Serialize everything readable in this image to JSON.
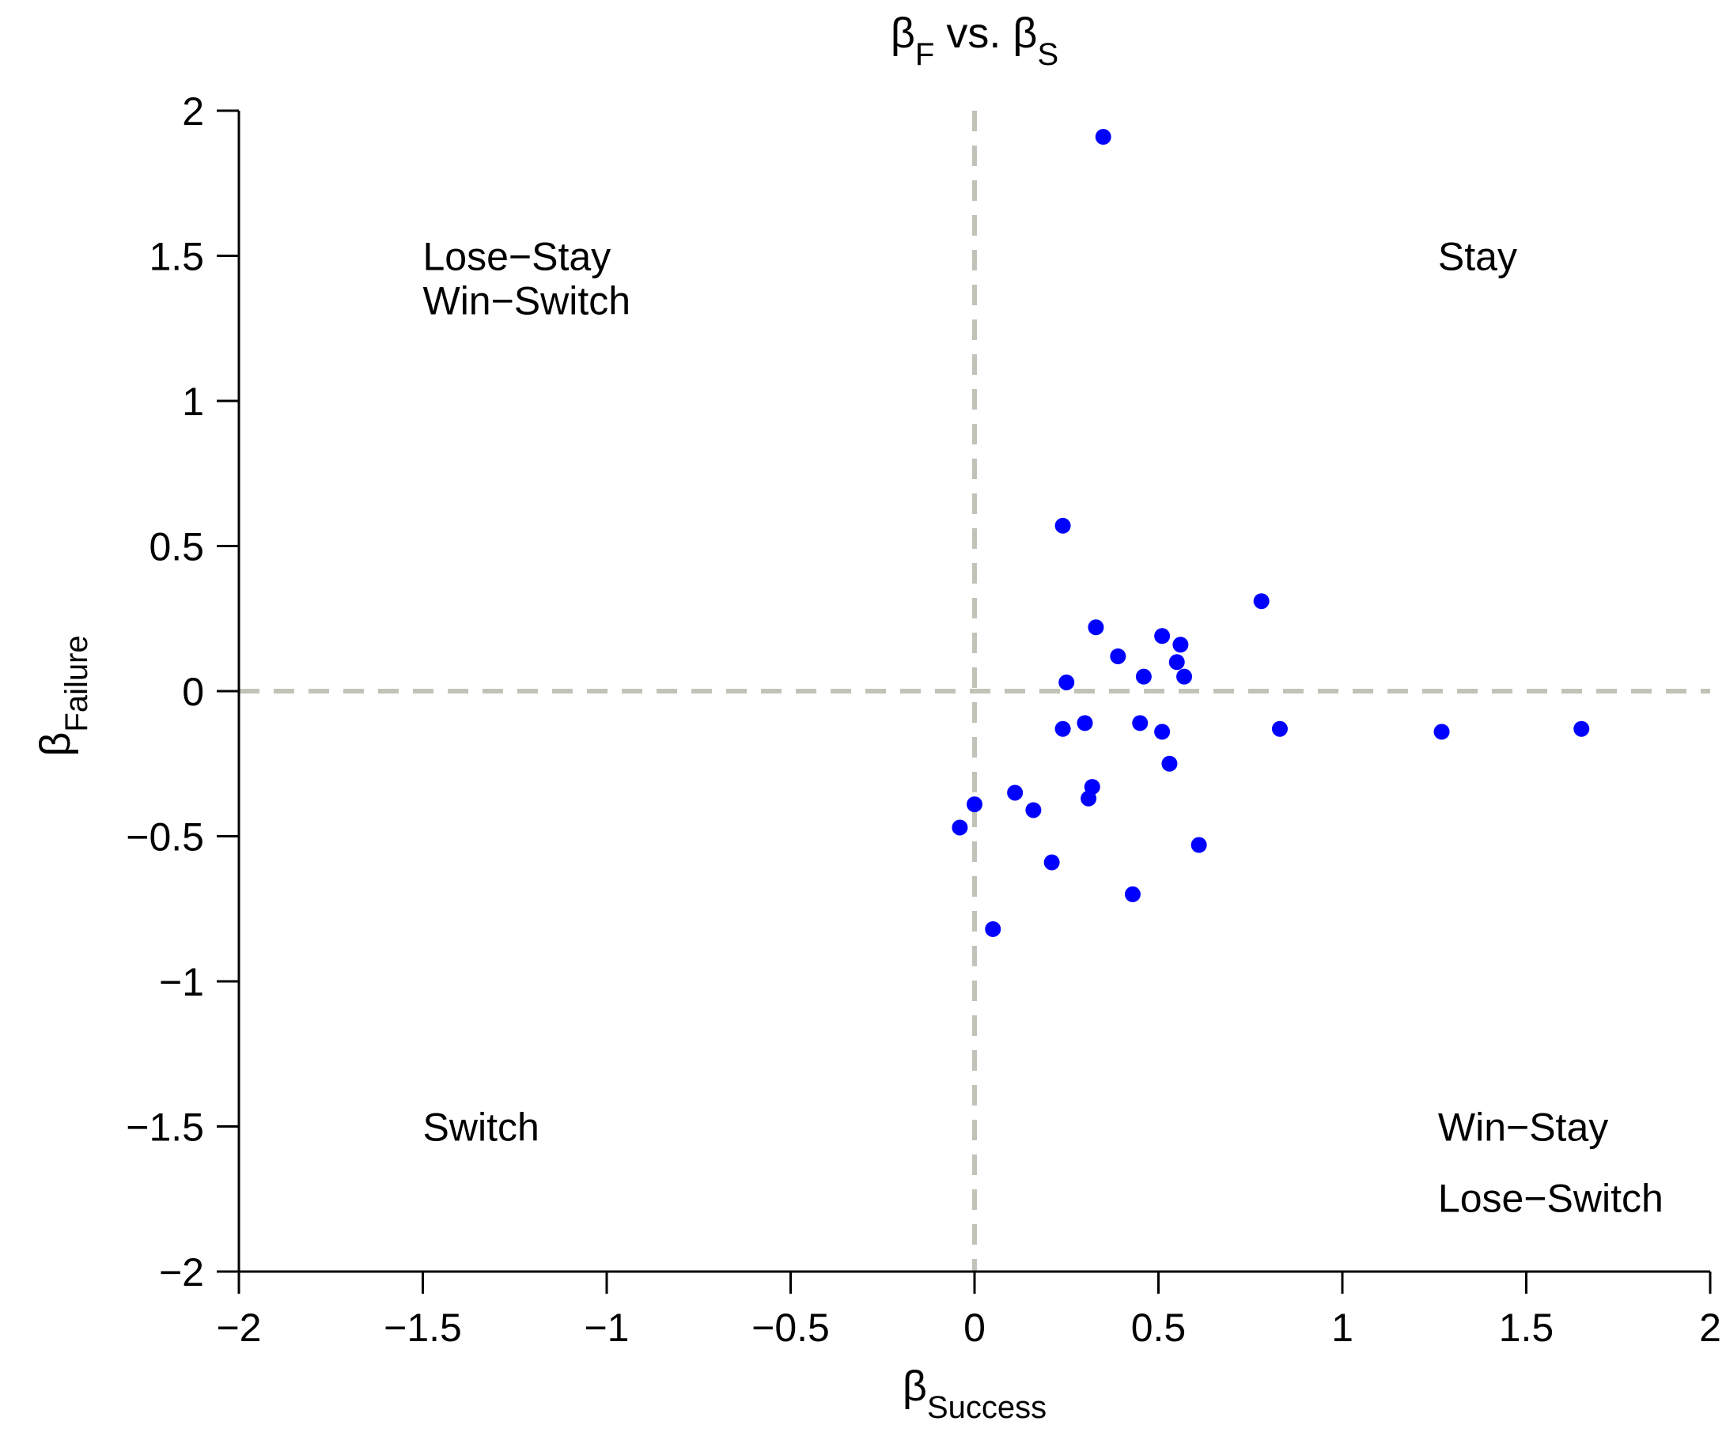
{
  "chart_data": {
    "type": "scatter",
    "title": {
      "main": "β",
      "sub1": "F",
      "mid": " vs. β",
      "sub2": "S"
    },
    "xlabel": {
      "main": "β",
      "sub": "Success"
    },
    "ylabel": {
      "main": "β",
      "sub": "Failure"
    },
    "xlim": [
      -2,
      2
    ],
    "ylim": [
      -2,
      2
    ],
    "x_ticks": [
      -2,
      -1.5,
      -1,
      -0.5,
      0,
      0.5,
      1,
      1.5,
      2
    ],
    "x_tick_labels": [
      "−2",
      "−1.5",
      "−1",
      "−0.5",
      "0",
      "0.5",
      "1",
      "1.5",
      "2"
    ],
    "y_ticks": [
      -2,
      -1.5,
      -1,
      -0.5,
      0,
      0.5,
      1,
      1.5,
      2
    ],
    "y_tick_labels": [
      "−2",
      "−1.5",
      "−1",
      "−0.5",
      "0",
      "0.5",
      "1",
      "1.5",
      "2"
    ],
    "grid": false,
    "reference_lines": {
      "x": 0,
      "y": 0,
      "style": "dashed",
      "color": "#c2c2b8"
    },
    "point_color": "#0000ff",
    "axis_color": "#000000",
    "quadrant_labels": [
      {
        "name": "top-left",
        "lines": [
          "Lose−Stay",
          "Win−Switch"
        ]
      },
      {
        "name": "top-right",
        "lines": [
          "Stay"
        ]
      },
      {
        "name": "bottom-left",
        "lines": [
          "Switch"
        ]
      },
      {
        "name": "bottom-right",
        "lines": [
          "Win−Stay",
          "Lose−Switch"
        ]
      }
    ],
    "points": [
      {
        "x": 0.35,
        "y": 1.91
      },
      {
        "x": 0.24,
        "y": 0.57
      },
      {
        "x": 0.78,
        "y": 0.31
      },
      {
        "x": 0.33,
        "y": 0.22
      },
      {
        "x": 0.51,
        "y": 0.19
      },
      {
        "x": 0.56,
        "y": 0.16
      },
      {
        "x": 0.39,
        "y": 0.12
      },
      {
        "x": 0.55,
        "y": 0.1
      },
      {
        "x": 0.46,
        "y": 0.05
      },
      {
        "x": 0.57,
        "y": 0.05
      },
      {
        "x": 0.25,
        "y": 0.03
      },
      {
        "x": 0.3,
        "y": -0.11
      },
      {
        "x": 0.45,
        "y": -0.11
      },
      {
        "x": 0.24,
        "y": -0.13
      },
      {
        "x": 0.51,
        "y": -0.14
      },
      {
        "x": 0.83,
        "y": -0.13
      },
      {
        "x": 1.27,
        "y": -0.14
      },
      {
        "x": 1.65,
        "y": -0.13
      },
      {
        "x": 0.53,
        "y": -0.25
      },
      {
        "x": 0.32,
        "y": -0.33
      },
      {
        "x": 0.31,
        "y": -0.37
      },
      {
        "x": 0.11,
        "y": -0.35
      },
      {
        "x": 0.0,
        "y": -0.39
      },
      {
        "x": 0.16,
        "y": -0.41
      },
      {
        "x": -0.04,
        "y": -0.47
      },
      {
        "x": 0.61,
        "y": -0.53
      },
      {
        "x": 0.21,
        "y": -0.59
      },
      {
        "x": 0.43,
        "y": -0.7
      },
      {
        "x": 0.05,
        "y": -0.82
      }
    ]
  }
}
